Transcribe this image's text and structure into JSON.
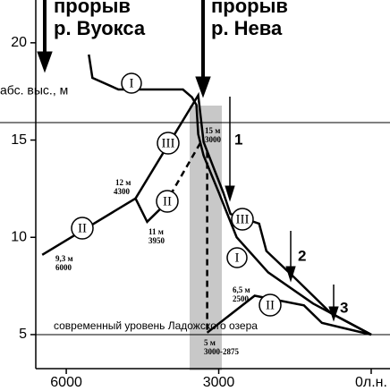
{
  "chart_data": {
    "type": "line",
    "xlim": [
      6600,
      -370
    ],
    "ylim": [
      2.1,
      22.2
    ],
    "xticks": [
      6000,
      3000,
      {
        "value": 0,
        "label": "0л.н."
      }
    ],
    "yticks": [
      5,
      10,
      15,
      20
    ],
    "y_label": "абс. выс., м",
    "series": [
      {
        "name": "I",
        "color": "#000",
        "style": "solid",
        "x": [
          5556,
          5485,
          4974,
          3704,
          3527,
          3439,
          3404,
          3298,
          2998,
          2646,
          2028,
          1146,
          0
        ],
        "values": [
          19.4,
          18.2,
          17.6,
          17.6,
          17.2,
          16.8,
          15.3,
          14.2,
          12.3,
          10.0,
          8.2,
          6.6,
          5.0
        ]
      },
      {
        "name": "III",
        "color": "#000",
        "style": "solid",
        "x": [
          4638,
          3404,
          3298,
          2910,
          2769,
          2205,
          2063,
          1499,
          794,
          0
        ],
        "values": [
          12.0,
          17.3,
          14.9,
          12.3,
          11.2,
          10.7,
          9.3,
          7.9,
          6.1,
          5.0
        ]
      },
      {
        "name": "II",
        "color": "#000",
        "style": "solid",
        "x": [
          6473,
          4638,
          4409,
          4056,
          null,
          3228,
          2293,
          1323,
          970,
          0
        ],
        "values": [
          9.1,
          12.0,
          10.8,
          11.7,
          null,
          5.1,
          7.0,
          6.5,
          5.6,
          5.0
        ]
      },
      {
        "name": "II",
        "color": "#000",
        "style": "dashed",
        "x": [
          4056,
          3351,
          null,
          3228,
          3228
        ],
        "values": [
          11.7,
          14.9,
          null,
          14.4,
          5.1
        ]
      }
    ],
    "annotations": {
      "vuoksa": [
        "прорыв",
        "р. Вуокса"
      ],
      "neva": [
        "прорыв",
        "р. Нева"
      ],
      "a15": [
        "15 м",
        "3000"
      ],
      "a12": [
        "12 м",
        "4300"
      ],
      "a11": [
        "11 м",
        "3950"
      ],
      "a93": [
        "9,3 м",
        "6000"
      ],
      "a65": [
        "6,5 м",
        "2500"
      ],
      "a5": [
        "5 м",
        "3000-2875"
      ],
      "n1": "1",
      "n2": "2",
      "n3": "3",
      "level": "современный уровень Ладожского озера"
    }
  }
}
